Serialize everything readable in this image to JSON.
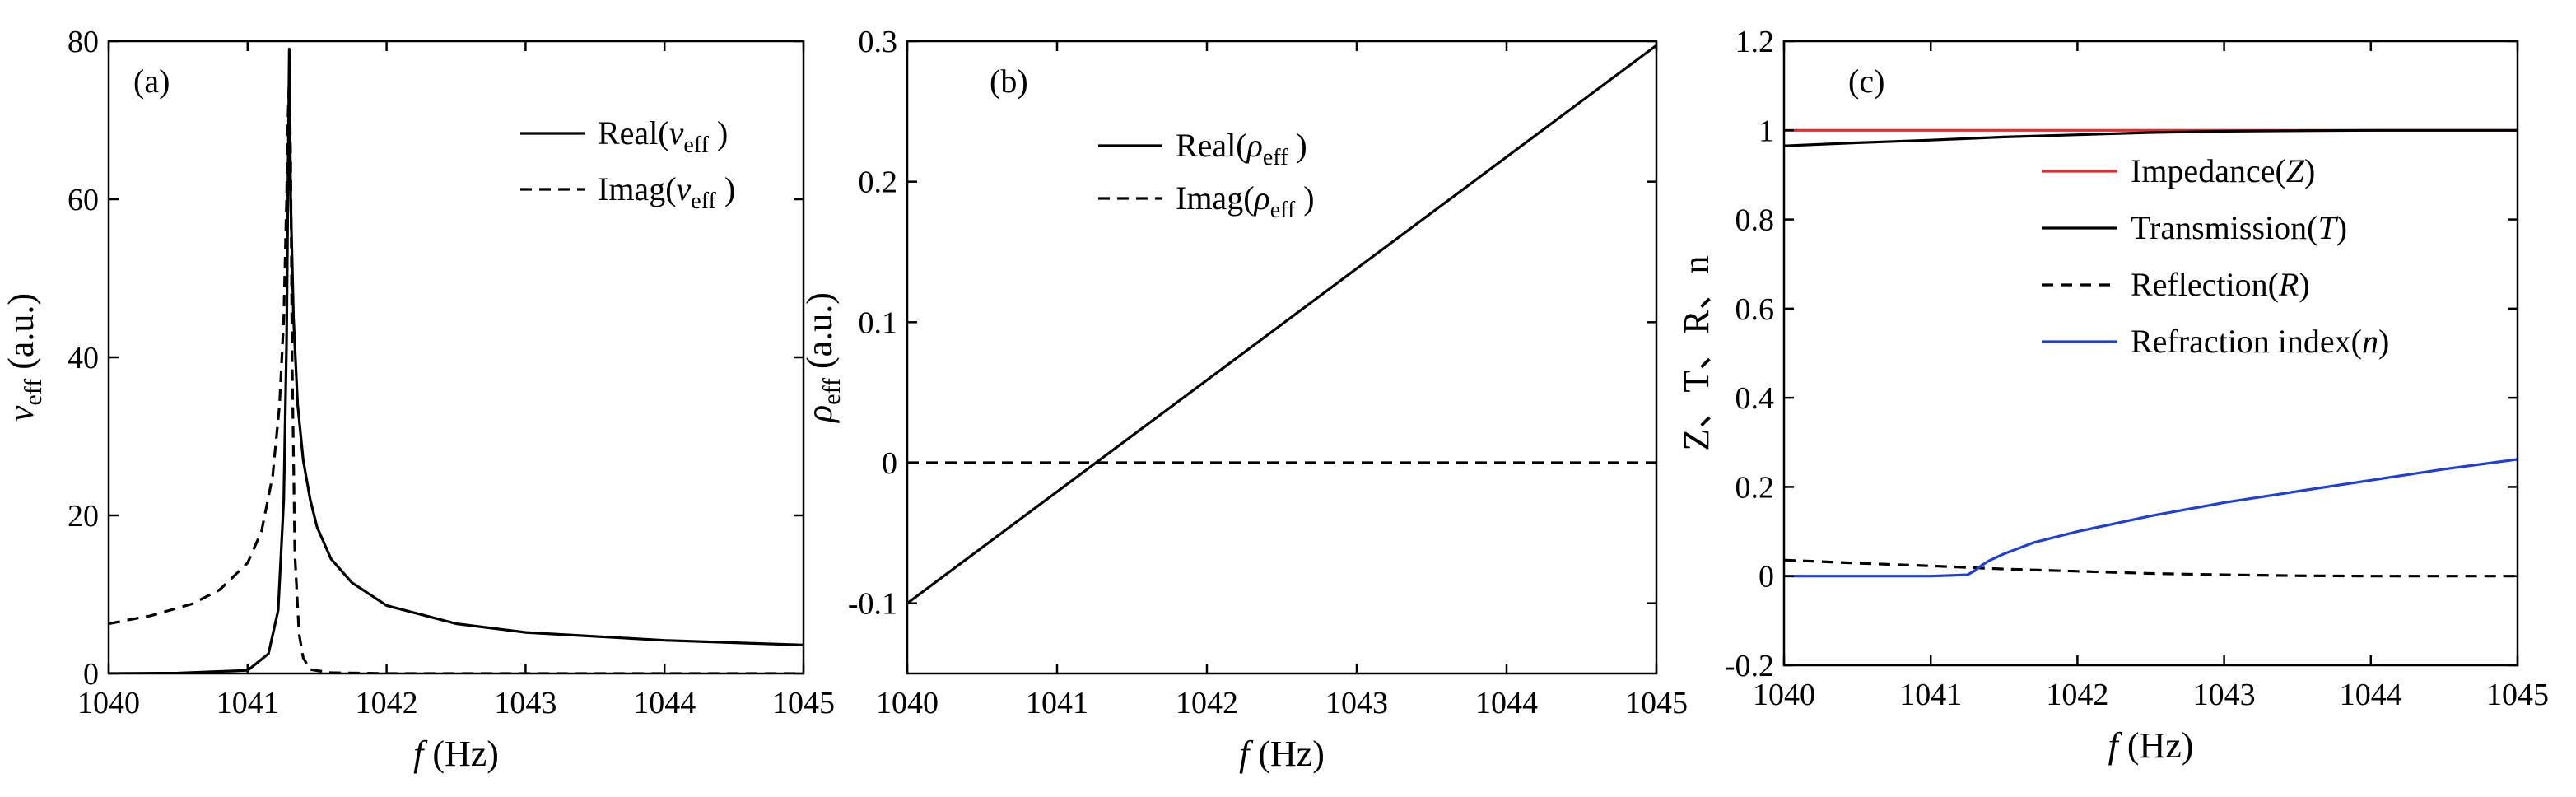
{
  "figure": {
    "panels": [
      {
        "id": "a",
        "panel_label": "(a)",
        "xlabel": {
          "var": "f",
          "unit": " (Hz)"
        },
        "ylabel": {
          "var": "v",
          "sub": "eff",
          "unit": " (a.u.)"
        },
        "legend": [
          {
            "pre": "Real(",
            "var": "v",
            "sub": "eff",
            "post": " )",
            "style": "solid"
          },
          {
            "pre": "Imag(",
            "var": "v",
            "sub": "eff",
            "post": " )",
            "style": "dashed"
          }
        ]
      },
      {
        "id": "b",
        "panel_label": "(b)",
        "xlabel": {
          "var": "f",
          "unit": " (Hz)"
        },
        "ylabel": {
          "var": "ρ",
          "sub": "eff",
          "unit": " (a.u.)"
        },
        "legend": [
          {
            "pre": "Real(",
            "var": "ρ",
            "sub": "eff",
            "post": " )",
            "style": "solid"
          },
          {
            "pre": "Imag(",
            "var": "ρ",
            "sub": "eff",
            "post": " )",
            "style": "dashed"
          }
        ]
      },
      {
        "id": "c",
        "panel_label": "(c)",
        "xlabel": {
          "var": "f",
          "unit": " (Hz)"
        },
        "ylabel": {
          "text": "Z、T、R、n"
        },
        "legend": [
          {
            "pre": "Impedance(",
            "var": "Z",
            "post": ")",
            "style": "solid",
            "color": "#e8292e"
          },
          {
            "pre": "Transmission(",
            "var": "T",
            "post": ")",
            "style": "solid",
            "color": "#000000"
          },
          {
            "pre": "Reflection(",
            "var": "R",
            "post": ")",
            "style": "dashed",
            "color": "#000000"
          },
          {
            "pre": "Refraction index(",
            "var": "n",
            "post": ")",
            "style": "solid",
            "color": "#1f3fd6"
          }
        ]
      }
    ]
  },
  "chart_data": [
    {
      "type": "line",
      "panel": "a",
      "xlim": [
        1040,
        1045
      ],
      "ylim": [
        0,
        80
      ],
      "xticks": [
        1040,
        1041,
        1042,
        1043,
        1044,
        1045
      ],
      "yticks": [
        0,
        20,
        40,
        60,
        80
      ],
      "legend_position": "top-right",
      "grid": false,
      "series": [
        {
          "name": "Real(v_eff)",
          "style": "solid",
          "color": "#000000",
          "x": [
            1040,
            1040.5,
            1041.0,
            1041.15,
            1041.22,
            1041.26,
            1041.28,
            1041.29,
            1041.3,
            1041.31,
            1041.33,
            1041.36,
            1041.4,
            1041.45,
            1041.5,
            1041.6,
            1041.75,
            1042.0,
            1042.5,
            1043.0,
            1044.0,
            1045.0
          ],
          "y": [
            0,
            0.05,
            0.4,
            2.5,
            8,
            22,
            42,
            62,
            79,
            60,
            45,
            34,
            27,
            22,
            18.5,
            14.5,
            11.5,
            8.6,
            6.3,
            5.2,
            4.2,
            3.6
          ]
        },
        {
          "name": "Imag(v_eff)",
          "style": "dashed",
          "color": "#000000",
          "x": [
            1040,
            1040.3,
            1040.6,
            1040.8,
            1041.0,
            1041.1,
            1041.18,
            1041.23,
            1041.26,
            1041.28,
            1041.29,
            1041.3,
            1041.31,
            1041.32,
            1041.34,
            1041.37,
            1041.4,
            1041.45,
            1041.6,
            1042,
            1045
          ],
          "y": [
            6.3,
            7.3,
            8.8,
            10.6,
            14.0,
            18.0,
            25,
            34,
            45,
            60,
            70,
            76,
            65,
            40,
            15,
            5,
            2,
            0.5,
            0.1,
            0,
            0
          ]
        }
      ]
    },
    {
      "type": "line",
      "panel": "b",
      "xlim": [
        1040,
        1045
      ],
      "ylim": [
        -0.15,
        0.3
      ],
      "xticks": [
        1040,
        1041,
        1042,
        1043,
        1044,
        1045
      ],
      "yticks": [
        -0.1,
        0,
        0.1,
        0.2,
        0.3
      ],
      "legend_position": "top-left",
      "grid": false,
      "series": [
        {
          "name": "Real(ρ_eff)",
          "style": "solid",
          "color": "#000000",
          "x": [
            1040,
            1045
          ],
          "y": [
            -0.1,
            0.297
          ]
        },
        {
          "name": "Imag(ρ_eff)",
          "style": "dashed",
          "color": "#000000",
          "x": [
            1040,
            1045
          ],
          "y": [
            0,
            0
          ]
        }
      ]
    },
    {
      "type": "line",
      "panel": "c",
      "xlim": [
        1040,
        1045
      ],
      "ylim": [
        -0.2,
        1.2
      ],
      "xticks": [
        1040,
        1041,
        1042,
        1043,
        1044,
        1045
      ],
      "yticks": [
        -0.2,
        0,
        0.2,
        0.4,
        0.6,
        0.8,
        1,
        1.2
      ],
      "legend_position": "center-right",
      "grid": false,
      "series": [
        {
          "name": "Impedance(Z)",
          "style": "solid",
          "color": "#e8292e",
          "x": [
            1040,
            1045
          ],
          "y": [
            1.0,
            1.0
          ]
        },
        {
          "name": "Transmission(T)",
          "style": "solid",
          "color": "#000000",
          "x": [
            1040,
            1040.5,
            1041,
            1041.5,
            1042,
            1042.5,
            1043,
            1043.5,
            1044,
            1045
          ],
          "y": [
            0.965,
            0.972,
            0.978,
            0.985,
            0.99,
            0.995,
            0.998,
            0.999,
            1.0,
            1.0
          ]
        },
        {
          "name": "Reflection(R)",
          "style": "dashed",
          "color": "#000000",
          "x": [
            1040,
            1040.5,
            1041,
            1041.5,
            1042,
            1042.5,
            1043,
            1043.5,
            1044,
            1045
          ],
          "y": [
            0.036,
            0.029,
            0.023,
            0.016,
            0.011,
            0.006,
            0.003,
            0.001,
            0,
            0
          ]
        },
        {
          "name": "Refraction index(n)",
          "style": "solid",
          "color": "#1f3fd6",
          "x": [
            1040,
            1040.5,
            1041,
            1041.25,
            1041.3,
            1041.35,
            1041.4,
            1041.5,
            1041.7,
            1042,
            1042.5,
            1043,
            1043.5,
            1044,
            1044.5,
            1045
          ],
          "y": [
            0,
            0,
            0,
            0.003,
            0.012,
            0.025,
            0.035,
            0.05,
            0.075,
            0.1,
            0.135,
            0.165,
            0.19,
            0.215,
            0.24,
            0.262
          ]
        }
      ]
    }
  ]
}
